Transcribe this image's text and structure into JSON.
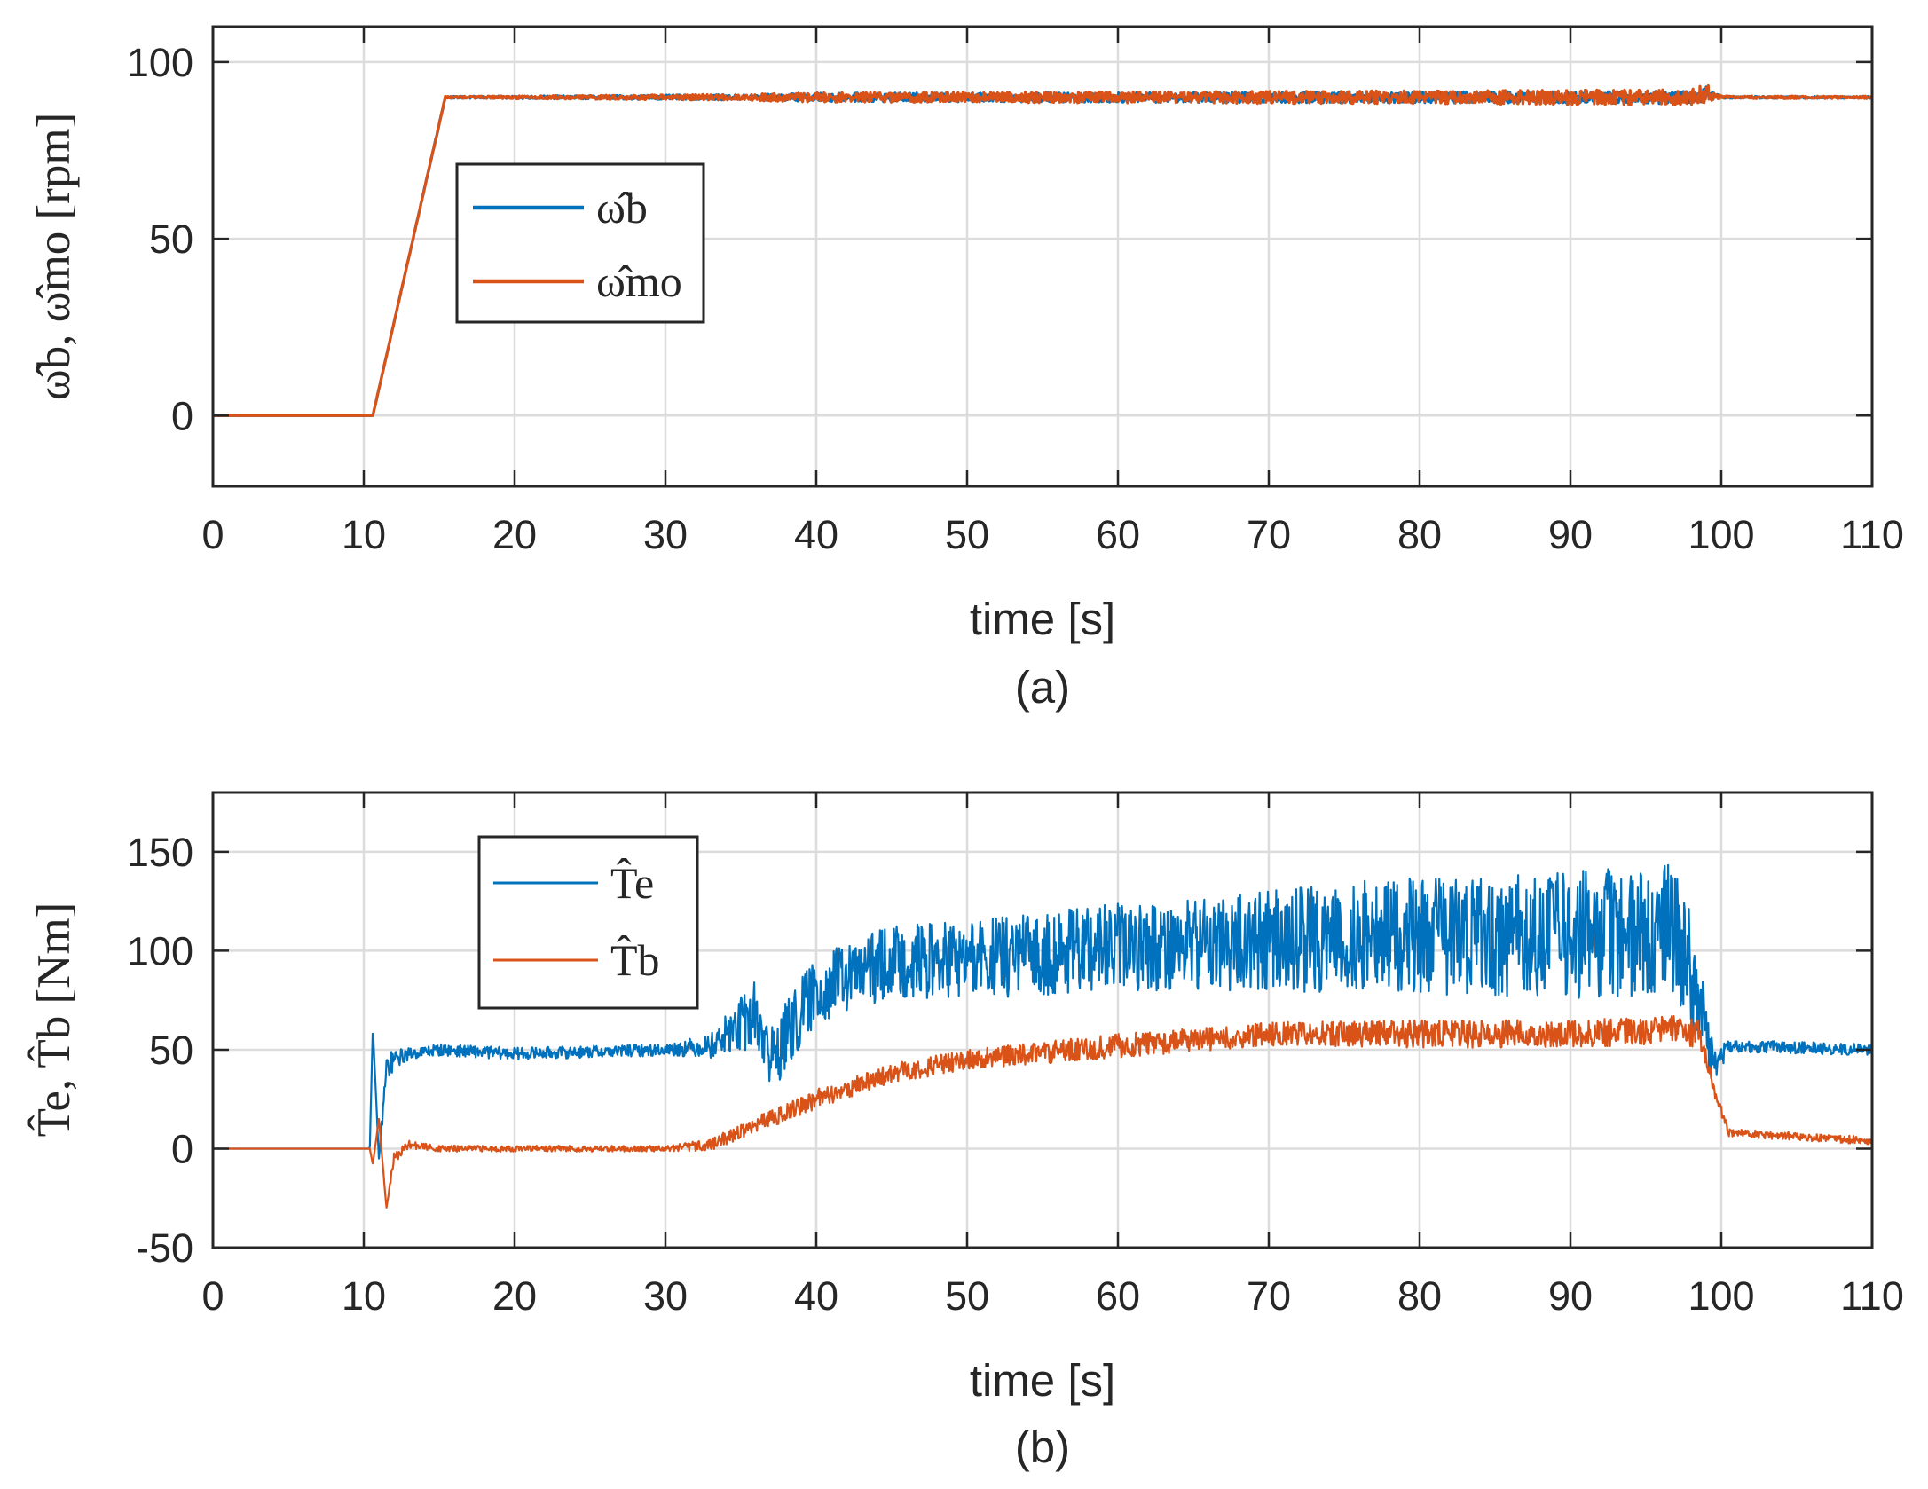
{
  "colors": {
    "series1": "#0072BD",
    "series2": "#D95319",
    "axis": "#262626",
    "grid": "#dcdcdc"
  },
  "chart_data": [
    {
      "type": "line",
      "caption": "(a)",
      "xlabel": "time [s]",
      "ylabel": "ω̂b, ω̂mo [rpm]",
      "xlim": [
        0,
        110
      ],
      "ylim": [
        -20,
        110
      ],
      "xticks": [
        0,
        10,
        20,
        30,
        40,
        50,
        60,
        70,
        80,
        90,
        100,
        110
      ],
      "yticks": [
        0,
        50,
        100
      ],
      "legend_position": "upper-left",
      "series": [
        {
          "name": "ω̂b",
          "color": "#0072BD",
          "x": [
            0,
            10.6,
            15.4,
            35,
            40,
            60,
            80,
            98,
            99,
            100,
            110
          ],
          "y": [
            0,
            0,
            90,
            90,
            90,
            90,
            90,
            90,
            91,
            90,
            90
          ],
          "noise": [
            0,
            0,
            0.3,
            0.8,
            1.2,
            1.4,
            1.6,
            1.8,
            2.2,
            0.3,
            0.3
          ]
        },
        {
          "name": "ω̂mo",
          "color": "#D95319",
          "x": [
            0,
            10.6,
            15.4,
            35,
            40,
            60,
            80,
            98,
            99,
            100,
            110
          ],
          "y": [
            0,
            0,
            90,
            90,
            90,
            90,
            90,
            90,
            91,
            90,
            90
          ],
          "noise": [
            0,
            0,
            0.3,
            0.9,
            1.4,
            1.6,
            1.9,
            2.2,
            2.8,
            0.4,
            0.4
          ]
        }
      ]
    },
    {
      "type": "line",
      "caption": "(b)",
      "xlabel": "time [s]",
      "ylabel": "T̂e, T̂b [Nm]",
      "xlim": [
        0,
        110
      ],
      "ylim": [
        -50,
        180
      ],
      "xticks": [
        0,
        10,
        20,
        30,
        40,
        50,
        60,
        70,
        80,
        90,
        100,
        110
      ],
      "yticks": [
        -50,
        0,
        50,
        100,
        150
      ],
      "legend_position": "upper-left",
      "series": [
        {
          "name": "T̂e",
          "color": "#0072BD",
          "x": [
            0,
            10.4,
            10.6,
            11,
            11.5,
            12,
            13,
            15,
            20,
            30,
            33,
            36,
            37,
            40,
            45,
            50,
            60,
            70,
            80,
            90,
            97,
            98.5,
            99.5,
            100.5,
            110
          ],
          "y": [
            0,
            0,
            62,
            -5,
            40,
            45,
            48,
            50,
            48,
            50,
            52,
            68,
            45,
            80,
            95,
            95,
            102,
            105,
            108,
            108,
            110,
            80,
            40,
            52,
            50
          ],
          "noise": [
            0,
            0,
            0,
            0,
            8,
            5,
            3,
            3,
            3,
            3,
            6,
            18,
            18,
            18,
            18,
            20,
            22,
            26,
            30,
            32,
            34,
            25,
            10,
            3,
            3
          ]
        },
        {
          "name": "T̂b",
          "color": "#D95319",
          "x": [
            0,
            10.4,
            10.6,
            11,
            11.5,
            12,
            13,
            15,
            20,
            30,
            33,
            36,
            40,
            45,
            50,
            60,
            70,
            80,
            90,
            97,
            98.5,
            99.5,
            100.5,
            110
          ],
          "y": [
            0,
            0,
            -8,
            15,
            -30,
            -5,
            2,
            0,
            0,
            0,
            2,
            12,
            25,
            38,
            45,
            52,
            58,
            58,
            58,
            60,
            58,
            30,
            8,
            4
          ],
          "noise": [
            0,
            0,
            0,
            0,
            0,
            3,
            2,
            1.5,
            1.5,
            1.5,
            3,
            4,
            5,
            5,
            5,
            6,
            6,
            7,
            7,
            7,
            7,
            4,
            2,
            2
          ]
        }
      ]
    }
  ]
}
